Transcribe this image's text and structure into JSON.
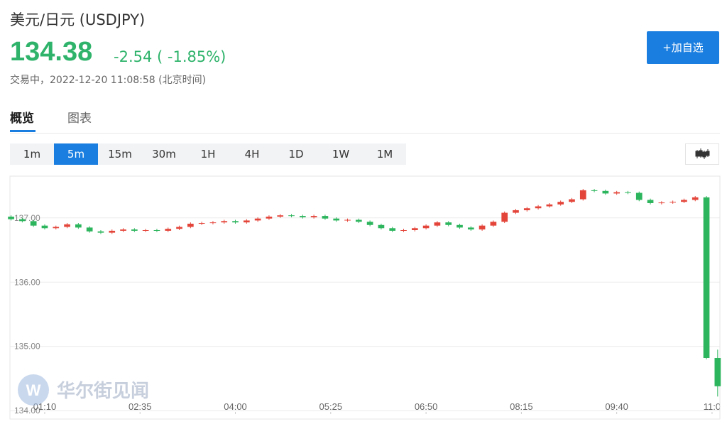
{
  "header": {
    "title": "美元/日元 (USDJPY)",
    "price": "134.38",
    "change": "-2.54 ( -1.85%)",
    "status": "交易中，2022-12-20 11:08:58 (北京时间)",
    "add_button": "+加自选"
  },
  "tabs": [
    "概览",
    "图表"
  ],
  "intervals": [
    "1m",
    "5m",
    "15m",
    "30m",
    "1H",
    "4H",
    "1D",
    "1W",
    "1M"
  ],
  "watermark": "华尔街见闻",
  "chart_data": {
    "type": "candlestick",
    "up_color": "#e4453a",
    "down_color": "#2db55d",
    "grid": true,
    "xlim": [
      39,
      672
    ],
    "xticks": [
      {
        "value": 70,
        "label": "01:10"
      },
      {
        "value": 155,
        "label": "02:35"
      },
      {
        "value": 240,
        "label": "04:00"
      },
      {
        "value": 325,
        "label": "05:25"
      },
      {
        "value": 410,
        "label": "06:50"
      },
      {
        "value": 495,
        "label": "08:15"
      },
      {
        "value": 580,
        "label": "09:40"
      },
      {
        "value": 665,
        "label": "11:0"
      }
    ],
    "ylim": [
      133.98,
      137.65
    ],
    "yticks": [
      {
        "value": 134,
        "label": "134.00"
      },
      {
        "value": 135,
        "label": "135.00"
      },
      {
        "value": 136,
        "label": "136.00"
      },
      {
        "value": 137,
        "label": "137.00"
      }
    ],
    "x": [
      40,
      50,
      60,
      70,
      80,
      90,
      100,
      110,
      120,
      130,
      140,
      150,
      160,
      170,
      180,
      190,
      200,
      210,
      220,
      230,
      240,
      250,
      260,
      270,
      280,
      290,
      300,
      310,
      320,
      330,
      340,
      350,
      360,
      370,
      380,
      390,
      400,
      410,
      420,
      430,
      440,
      450,
      460,
      470,
      480,
      490,
      500,
      510,
      520,
      530,
      540,
      550,
      560,
      570,
      580,
      590,
      600,
      610,
      620,
      630,
      640,
      650,
      660,
      670
    ],
    "open": [
      137.02,
      136.98,
      136.95,
      136.88,
      136.84,
      136.86,
      136.9,
      136.85,
      136.79,
      136.77,
      136.8,
      136.82,
      136.8,
      136.81,
      136.8,
      136.83,
      136.86,
      136.91,
      136.92,
      136.93,
      136.95,
      136.93,
      136.96,
      136.99,
      137.02,
      137.04,
      137.03,
      137.01,
      137.03,
      136.99,
      136.96,
      136.97,
      136.94,
      136.89,
      136.84,
      136.8,
      136.81,
      136.84,
      136.88,
      136.93,
      136.89,
      136.85,
      136.82,
      136.88,
      136.94,
      137.08,
      137.12,
      137.15,
      137.18,
      137.21,
      137.25,
      137.29,
      137.43,
      137.42,
      137.38,
      137.4,
      137.39,
      137.28,
      137.23,
      137.24,
      137.25,
      137.28,
      137.32,
      134.82
    ],
    "high": [
      137.04,
      137.0,
      136.97,
      136.9,
      136.88,
      136.92,
      136.92,
      136.87,
      136.81,
      136.82,
      136.84,
      136.84,
      136.83,
      136.83,
      136.85,
      136.88,
      136.93,
      136.94,
      136.95,
      136.97,
      136.97,
      136.98,
      137.01,
      137.04,
      137.06,
      137.06,
      137.05,
      137.05,
      137.05,
      137.01,
      136.99,
      136.99,
      136.96,
      136.91,
      136.86,
      136.83,
      136.86,
      136.9,
      136.95,
      136.95,
      136.91,
      136.87,
      136.9,
      136.96,
      137.1,
      137.14,
      137.17,
      137.2,
      137.23,
      137.27,
      137.31,
      137.45,
      137.45,
      137.44,
      137.42,
      137.42,
      137.41,
      137.3,
      137.26,
      137.27,
      137.3,
      137.34,
      137.34,
      134.95
    ],
    "low": [
      136.96,
      136.93,
      136.86,
      136.82,
      136.82,
      136.84,
      136.83,
      136.77,
      136.75,
      136.75,
      136.78,
      136.78,
      136.78,
      136.78,
      136.78,
      136.81,
      136.84,
      136.89,
      136.9,
      136.91,
      136.91,
      136.91,
      136.94,
      136.97,
      137.0,
      137.01,
      136.99,
      136.99,
      136.97,
      136.94,
      136.94,
      136.92,
      136.87,
      136.82,
      136.78,
      136.78,
      136.79,
      136.82,
      136.86,
      136.87,
      136.83,
      136.8,
      136.8,
      136.86,
      136.92,
      137.06,
      137.1,
      137.13,
      137.16,
      137.19,
      137.23,
      137.27,
      137.4,
      137.36,
      137.36,
      137.37,
      137.26,
      137.21,
      137.21,
      137.22,
      137.23,
      137.26,
      134.8,
      134.22
    ],
    "close": [
      136.98,
      136.95,
      136.88,
      136.84,
      136.86,
      136.9,
      136.85,
      136.79,
      136.77,
      136.8,
      136.82,
      136.8,
      136.81,
      136.8,
      136.83,
      136.86,
      136.91,
      136.92,
      136.93,
      136.95,
      136.93,
      136.96,
      136.99,
      137.02,
      137.04,
      137.03,
      137.01,
      137.03,
      136.99,
      136.96,
      136.97,
      136.94,
      136.89,
      136.84,
      136.8,
      136.81,
      136.84,
      136.88,
      136.93,
      136.89,
      136.85,
      136.82,
      136.88,
      136.94,
      137.08,
      137.12,
      137.15,
      137.18,
      137.21,
      137.25,
      137.29,
      137.43,
      137.42,
      137.38,
      137.4,
      137.39,
      137.28,
      137.23,
      137.24,
      137.25,
      137.28,
      137.32,
      134.82,
      134.38
    ]
  }
}
